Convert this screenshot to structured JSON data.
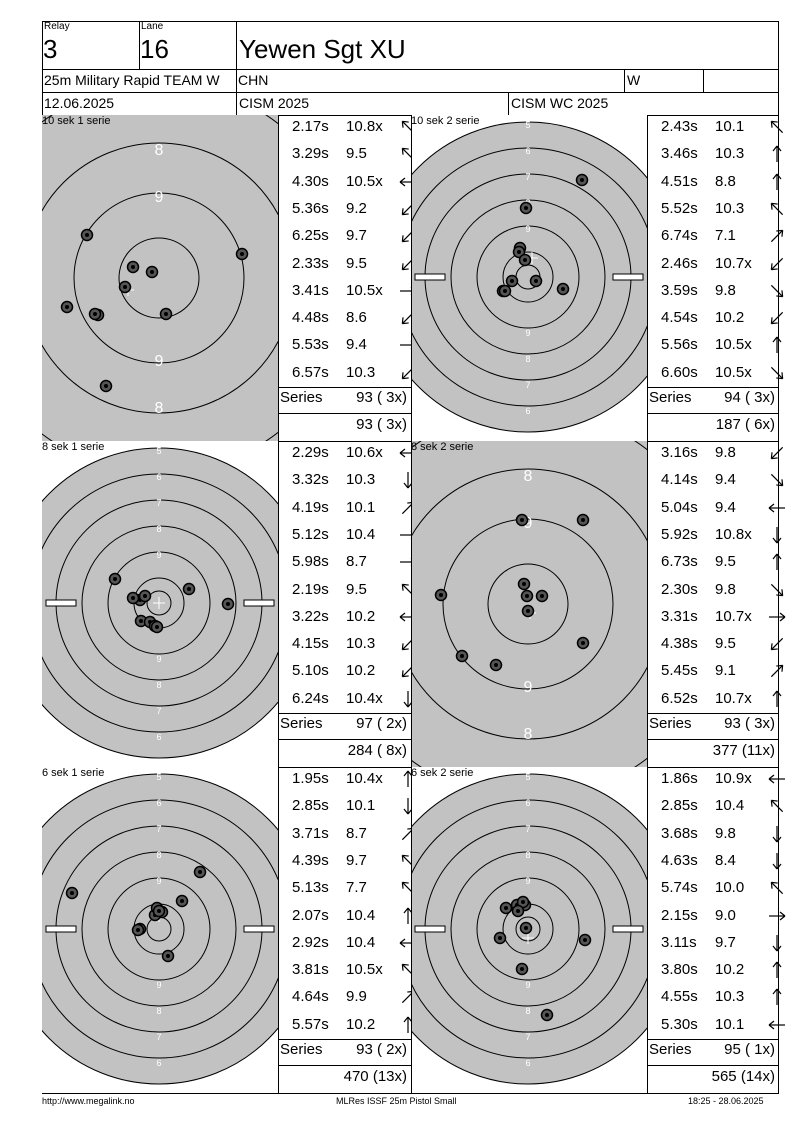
{
  "header": {
    "relay_label": "Relay",
    "relay_value": "3",
    "lane_label": "Lane",
    "lane_value": "16",
    "shooter_name": "Yewen Sgt XU",
    "event": "25m Military Rapid TEAM W",
    "nation": "CHN",
    "gender": "W",
    "date": "12.06.2025",
    "competition": "CISM 2025",
    "championship": "CISM WC 2025"
  },
  "series": [
    {
      "title": "10 sek 1 serie",
      "target_style": "zoomed",
      "shots": [
        {
          "time": "2.17s",
          "score": "10.8x",
          "dir": "left-up"
        },
        {
          "time": "3.29s",
          "score": "9.5",
          "dir": "left-up"
        },
        {
          "time": "4.30s",
          "score": "10.5x",
          "dir": "left"
        },
        {
          "time": "5.36s",
          "score": "9.2",
          "dir": "left-down"
        },
        {
          "time": "6.25s",
          "score": "9.7",
          "dir": "left-down"
        },
        {
          "time": "2.33s",
          "score": "9.5",
          "dir": "left-down"
        },
        {
          "time": "3.41s",
          "score": "10.5x",
          "dir": "right"
        },
        {
          "time": "4.48s",
          "score": "8.6",
          "dir": "left-down"
        },
        {
          "time": "5.53s",
          "score": "9.4",
          "dir": "right"
        },
        {
          "time": "6.57s",
          "score": "10.3",
          "dir": "left-down"
        }
      ],
      "series_label": "Series",
      "series_total": "93 ( 3x)",
      "running_total": "93 ( 3x)"
    },
    {
      "title": "10 sek 2 serie",
      "target_style": "full",
      "shots": [
        {
          "time": "2.43s",
          "score": "10.1",
          "dir": "left-up"
        },
        {
          "time": "3.46s",
          "score": "10.3",
          "dir": "up"
        },
        {
          "time": "4.51s",
          "score": "8.8",
          "dir": "up"
        },
        {
          "time": "5.52s",
          "score": "10.3",
          "dir": "left-up"
        },
        {
          "time": "6.74s",
          "score": "7.1",
          "dir": "right-up"
        },
        {
          "time": "2.46s",
          "score": "10.7x",
          "dir": "left-down"
        },
        {
          "time": "3.59s",
          "score": "9.8",
          "dir": "right-down"
        },
        {
          "time": "4.54s",
          "score": "10.2",
          "dir": "left-down"
        },
        {
          "time": "5.56s",
          "score": "10.5x",
          "dir": "up"
        },
        {
          "time": "6.60s",
          "score": "10.5x",
          "dir": "right-down"
        }
      ],
      "series_label": "Series",
      "series_total": "94 ( 3x)",
      "running_total": "187 ( 6x)"
    },
    {
      "title": "8 sek 1 serie",
      "target_style": "full",
      "shots": [
        {
          "time": "2.29s",
          "score": "10.6x",
          "dir": "left"
        },
        {
          "time": "3.32s",
          "score": "10.3",
          "dir": "down"
        },
        {
          "time": "4.19s",
          "score": "10.1",
          "dir": "right-up"
        },
        {
          "time": "5.12s",
          "score": "10.4",
          "dir": "right"
        },
        {
          "time": "5.98s",
          "score": "8.7",
          "dir": "right"
        },
        {
          "time": "2.19s",
          "score": "9.5",
          "dir": "left-up"
        },
        {
          "time": "3.22s",
          "score": "10.2",
          "dir": "left"
        },
        {
          "time": "4.15s",
          "score": "10.3",
          "dir": "left-down"
        },
        {
          "time": "5.10s",
          "score": "10.2",
          "dir": "left-down"
        },
        {
          "time": "6.24s",
          "score": "10.4x",
          "dir": "down"
        }
      ],
      "series_label": "Series",
      "series_total": "97 ( 2x)",
      "running_total": "284 ( 8x)"
    },
    {
      "title": "8 sek 2 serie",
      "target_style": "zoomed",
      "shots": [
        {
          "time": "3.16s",
          "score": "9.8",
          "dir": "left-down"
        },
        {
          "time": "4.14s",
          "score": "9.4",
          "dir": "right-down"
        },
        {
          "time": "5.04s",
          "score": "9.4",
          "dir": "left"
        },
        {
          "time": "5.92s",
          "score": "10.8x",
          "dir": "down"
        },
        {
          "time": "6.73s",
          "score": "9.5",
          "dir": "up"
        },
        {
          "time": "2.30s",
          "score": "9.8",
          "dir": "right-down"
        },
        {
          "time": "3.31s",
          "score": "10.7x",
          "dir": "right"
        },
        {
          "time": "4.38s",
          "score": "9.5",
          "dir": "left-down"
        },
        {
          "time": "5.45s",
          "score": "9.1",
          "dir": "right-up"
        },
        {
          "time": "6.52s",
          "score": "10.7x",
          "dir": "up"
        }
      ],
      "series_label": "Series",
      "series_total": "93 ( 3x)",
      "running_total": "377 (11x)"
    },
    {
      "title": "6 sek 1 serie",
      "target_style": "full",
      "shots": [
        {
          "time": "1.95s",
          "score": "10.4x",
          "dir": "up"
        },
        {
          "time": "2.85s",
          "score": "10.1",
          "dir": "down"
        },
        {
          "time": "3.71s",
          "score": "8.7",
          "dir": "right-up"
        },
        {
          "time": "4.39s",
          "score": "9.7",
          "dir": "left-up"
        },
        {
          "time": "5.13s",
          "score": "7.7",
          "dir": "left-up"
        },
        {
          "time": "2.07s",
          "score": "10.4",
          "dir": "up"
        },
        {
          "time": "2.92s",
          "score": "10.4",
          "dir": "left"
        },
        {
          "time": "3.81s",
          "score": "10.5x",
          "dir": "left-up"
        },
        {
          "time": "4.64s",
          "score": "9.9",
          "dir": "right-up"
        },
        {
          "time": "5.57s",
          "score": "10.2",
          "dir": "up"
        }
      ],
      "series_label": "Series",
      "series_total": "93 ( 2x)",
      "running_total": "470 (13x)"
    },
    {
      "title": "6 sek 2 serie",
      "target_style": "full",
      "shots": [
        {
          "time": "1.86s",
          "score": "10.9x",
          "dir": "left"
        },
        {
          "time": "2.85s",
          "score": "10.4",
          "dir": "left-up"
        },
        {
          "time": "3.68s",
          "score": "9.8",
          "dir": "down"
        },
        {
          "time": "4.63s",
          "score": "8.4",
          "dir": "down"
        },
        {
          "time": "5.74s",
          "score": "10.0",
          "dir": "left-up"
        },
        {
          "time": "2.15s",
          "score": "9.0",
          "dir": "right"
        },
        {
          "time": "3.11s",
          "score": "9.7",
          "dir": "down"
        },
        {
          "time": "3.80s",
          "score": "10.2",
          "dir": "up"
        },
        {
          "time": "4.55s",
          "score": "10.3",
          "dir": "up"
        },
        {
          "time": "5.30s",
          "score": "10.1",
          "dir": "left"
        }
      ],
      "series_label": "Series",
      "series_total": "95 ( 1x)",
      "running_total": "565 (14x)"
    }
  ],
  "footer": {
    "url": "http://www.megalink.no",
    "software": "MLRes ISSF 25m Pistol Small",
    "timestamp": "18:25 - 28.06.2025"
  }
}
